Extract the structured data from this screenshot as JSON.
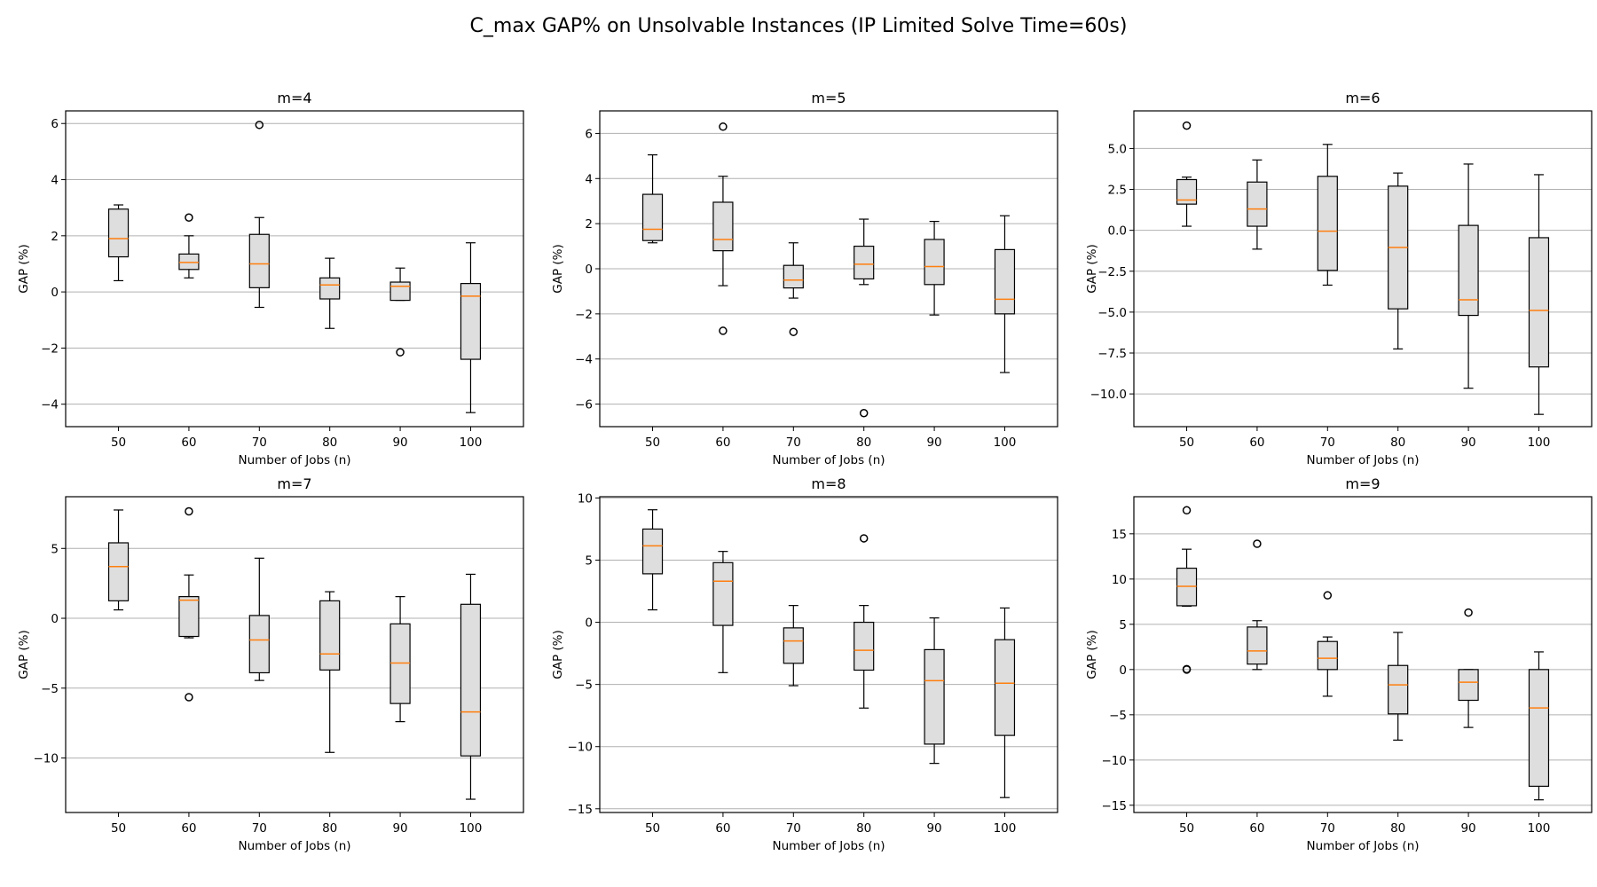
{
  "figure": {
    "title": "C_max GAP% on Unsolvable Instances (IP Limited Solve Time=60s)"
  },
  "style": {
    "box_fill": "#dedede",
    "box_edge": "#000000",
    "median_color": "#ff7f0e",
    "grid_color": "#b0b0b0"
  },
  "chart_data": [
    {
      "type": "boxplot",
      "title": "m=4",
      "xlabel": "Number of Jobs (n)",
      "ylabel": "GAP (%)",
      "ylim": [
        -4.8,
        6.45
      ],
      "yticks": [
        -4,
        -2,
        0,
        2,
        4,
        6
      ],
      "ytick_labels": [
        "−4",
        "−2",
        "0",
        "2",
        "4",
        "6"
      ],
      "grid": "y",
      "categories": [
        "50",
        "60",
        "70",
        "80",
        "90",
        "100"
      ],
      "boxes": [
        {
          "whislo": 0.4,
          "q1": 1.25,
          "med": 1.9,
          "q3": 2.95,
          "whishi": 3.1,
          "fliers": []
        },
        {
          "whislo": 0.5,
          "q1": 0.8,
          "med": 1.05,
          "q3": 1.35,
          "whishi": 2.0,
          "fliers": [
            2.65
          ]
        },
        {
          "whislo": -0.55,
          "q1": 0.15,
          "med": 1.0,
          "q3": 2.05,
          "whishi": 2.65,
          "fliers": [
            5.95
          ]
        },
        {
          "whislo": -1.3,
          "q1": -0.25,
          "med": 0.25,
          "q3": 0.5,
          "whishi": 1.2,
          "fliers": []
        },
        {
          "whislo": -0.3,
          "q1": -0.3,
          "med": 0.2,
          "q3": 0.35,
          "whishi": 0.85,
          "fliers": [
            -2.15
          ]
        },
        {
          "whislo": -4.3,
          "q1": -2.4,
          "med": -0.15,
          "q3": 0.3,
          "whishi": 1.75,
          "fliers": []
        }
      ]
    },
    {
      "type": "boxplot",
      "title": "m=5",
      "xlabel": "Number of Jobs (n)",
      "ylabel": "GAP (%)",
      "ylim": [
        -7.0,
        7.0
      ],
      "yticks": [
        -6,
        -4,
        -2,
        0,
        2,
        4,
        6
      ],
      "ytick_labels": [
        "−6",
        "−4",
        "−2",
        "0",
        "2",
        "4",
        "6"
      ],
      "grid": "y",
      "categories": [
        "50",
        "60",
        "70",
        "80",
        "90",
        "100"
      ],
      "boxes": [
        {
          "whislo": 1.15,
          "q1": 1.25,
          "med": 1.75,
          "q3": 3.3,
          "whishi": 5.05,
          "fliers": []
        },
        {
          "whislo": -0.75,
          "q1": 0.8,
          "med": 1.3,
          "q3": 2.95,
          "whishi": 4.1,
          "fliers": [
            6.3,
            -2.75
          ]
        },
        {
          "whislo": -1.3,
          "q1": -0.85,
          "med": -0.5,
          "q3": 0.15,
          "whishi": 1.15,
          "fliers": [
            -2.8
          ]
        },
        {
          "whislo": -0.7,
          "q1": -0.45,
          "med": 0.2,
          "q3": 1.0,
          "whishi": 2.2,
          "fliers": [
            -6.4
          ]
        },
        {
          "whislo": -2.05,
          "q1": -0.7,
          "med": 0.1,
          "q3": 1.3,
          "whishi": 2.1,
          "fliers": []
        },
        {
          "whislo": -4.6,
          "q1": -2.0,
          "med": -1.35,
          "q3": 0.85,
          "whishi": 2.35,
          "fliers": []
        }
      ]
    },
    {
      "type": "boxplot",
      "title": "m=6",
      "xlabel": "Number of Jobs (n)",
      "ylabel": "GAP (%)",
      "ylim": [
        -12.0,
        7.3
      ],
      "yticks": [
        -10.0,
        -7.5,
        -5.0,
        -2.5,
        0.0,
        2.5,
        5.0
      ],
      "ytick_labels": [
        "−10.0",
        "−7.5",
        "−5.0",
        "−2.5",
        "0.0",
        "2.5",
        "5.0"
      ],
      "grid": "y",
      "categories": [
        "50",
        "60",
        "70",
        "80",
        "90",
        "100"
      ],
      "boxes": [
        {
          "whislo": 0.25,
          "q1": 1.6,
          "med": 1.85,
          "q3": 3.1,
          "whishi": 3.25,
          "fliers": [
            6.4
          ]
        },
        {
          "whislo": -1.15,
          "q1": 0.25,
          "med": 1.3,
          "q3": 2.95,
          "whishi": 4.3,
          "fliers": []
        },
        {
          "whislo": -3.35,
          "q1": -2.45,
          "med": -0.05,
          "q3": 3.3,
          "whishi": 5.25,
          "fliers": []
        },
        {
          "whislo": -7.25,
          "q1": -4.8,
          "med": -1.05,
          "q3": 2.7,
          "whishi": 3.5,
          "fliers": []
        },
        {
          "whislo": -9.65,
          "q1": -5.2,
          "med": -4.25,
          "q3": 0.3,
          "whishi": 4.05,
          "fliers": []
        },
        {
          "whislo": -11.25,
          "q1": -8.35,
          "med": -4.9,
          "q3": -0.45,
          "whishi": 3.4,
          "fliers": []
        }
      ]
    },
    {
      "type": "boxplot",
      "title": "m=7",
      "xlabel": "Number of Jobs (n)",
      "ylabel": "GAP (%)",
      "ylim": [
        -13.9,
        8.7
      ],
      "yticks": [
        -10,
        -5,
        0,
        5
      ],
      "ytick_labels": [
        "−10",
        "−5",
        "0",
        "5"
      ],
      "grid": "y",
      "categories": [
        "50",
        "60",
        "70",
        "80",
        "90",
        "100"
      ],
      "boxes": [
        {
          "whislo": 0.6,
          "q1": 1.25,
          "med": 3.7,
          "q3": 5.4,
          "whishi": 7.75,
          "fliers": []
        },
        {
          "whislo": -1.4,
          "q1": -1.3,
          "med": 1.3,
          "q3": 1.55,
          "whishi": 3.1,
          "fliers": [
            7.65,
            -5.65
          ]
        },
        {
          "whislo": -4.45,
          "q1": -3.9,
          "med": -1.55,
          "q3": 0.2,
          "whishi": 4.3,
          "fliers": []
        },
        {
          "whislo": -9.6,
          "q1": -3.7,
          "med": -2.55,
          "q3": 1.25,
          "whishi": 1.9,
          "fliers": []
        },
        {
          "whislo": -7.4,
          "q1": -6.1,
          "med": -3.2,
          "q3": -0.4,
          "whishi": 1.55,
          "fliers": []
        },
        {
          "whislo": -12.95,
          "q1": -9.85,
          "med": -6.7,
          "q3": 1.0,
          "whishi": 3.15,
          "fliers": []
        }
      ]
    },
    {
      "type": "boxplot",
      "title": "m=8",
      "xlabel": "Number of Jobs (n)",
      "ylabel": "GAP (%)",
      "ylim": [
        -15.3,
        10.1
      ],
      "yticks": [
        -15,
        -10,
        -5,
        0,
        5,
        10
      ],
      "ytick_labels": [
        "−15",
        "−10",
        "−5",
        "0",
        "5",
        "10"
      ],
      "grid": "y",
      "categories": [
        "50",
        "60",
        "70",
        "80",
        "90",
        "100"
      ],
      "boxes": [
        {
          "whislo": 1.0,
          "q1": 3.9,
          "med": 6.15,
          "q3": 7.5,
          "whishi": 9.05,
          "fliers": []
        },
        {
          "whislo": -4.05,
          "q1": -0.25,
          "med": 3.3,
          "q3": 4.8,
          "whishi": 5.7,
          "fliers": []
        },
        {
          "whislo": -5.1,
          "q1": -3.3,
          "med": -1.5,
          "q3": -0.45,
          "whishi": 1.35,
          "fliers": []
        },
        {
          "whislo": -6.9,
          "q1": -3.85,
          "med": -2.25,
          "q3": 0.0,
          "whishi": 1.35,
          "fliers": [
            6.75
          ]
        },
        {
          "whislo": -11.35,
          "q1": -9.8,
          "med": -4.7,
          "q3": -2.2,
          "whishi": 0.35,
          "fliers": []
        },
        {
          "whislo": -14.1,
          "q1": -9.1,
          "med": -4.9,
          "q3": -1.4,
          "whishi": 1.15,
          "fliers": []
        }
      ]
    },
    {
      "type": "boxplot",
      "title": "m=9",
      "xlabel": "Number of Jobs (n)",
      "ylabel": "GAP (%)",
      "ylim": [
        -15.8,
        19.1
      ],
      "yticks": [
        -15,
        -10,
        -5,
        0,
        5,
        10,
        15
      ],
      "ytick_labels": [
        "−15",
        "−10",
        "−5",
        "0",
        "5",
        "10",
        "15"
      ],
      "grid": "y",
      "categories": [
        "50",
        "60",
        "70",
        "80",
        "90",
        "100"
      ],
      "boxes": [
        {
          "whislo": 7.0,
          "q1": 7.05,
          "med": 9.2,
          "q3": 11.2,
          "whishi": 13.3,
          "fliers": [
            17.6,
            0.05,
            0.0
          ]
        },
        {
          "whislo": 0.0,
          "q1": 0.6,
          "med": 2.05,
          "q3": 4.7,
          "whishi": 5.4,
          "fliers": [
            13.9
          ]
        },
        {
          "whislo": -2.95,
          "q1": 0.0,
          "med": 1.25,
          "q3": 3.1,
          "whishi": 3.6,
          "fliers": [
            8.2
          ]
        },
        {
          "whislo": -7.8,
          "q1": -4.9,
          "med": -1.7,
          "q3": 0.45,
          "whishi": 4.1,
          "fliers": []
        },
        {
          "whislo": -6.4,
          "q1": -3.4,
          "med": -1.4,
          "q3": 0.0,
          "whishi": 0.0,
          "fliers": [
            6.3
          ]
        },
        {
          "whislo": -14.4,
          "q1": -12.9,
          "med": -4.25,
          "q3": 0.0,
          "whishi": 1.95,
          "fliers": []
        }
      ]
    }
  ]
}
